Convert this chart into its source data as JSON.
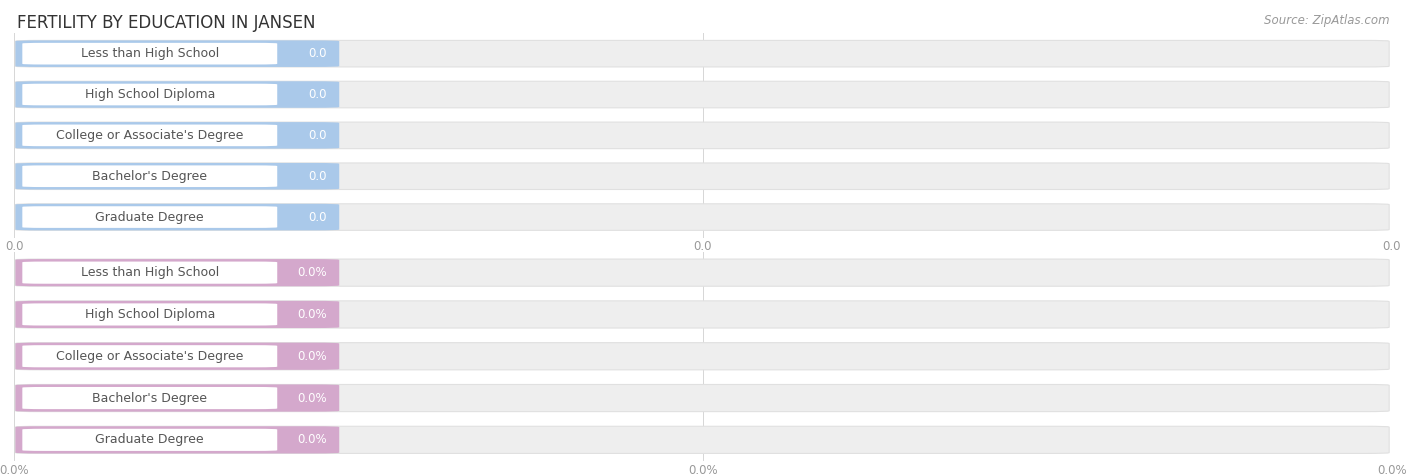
{
  "title": "FERTILITY BY EDUCATION IN JANSEN",
  "source": "Source: ZipAtlas.com",
  "categories": [
    "Less than High School",
    "High School Diploma",
    "College or Associate's Degree",
    "Bachelor's Degree",
    "Graduate Degree"
  ],
  "values_top": [
    0.0,
    0.0,
    0.0,
    0.0,
    0.0
  ],
  "values_bottom": [
    0.0,
    0.0,
    0.0,
    0.0,
    0.0
  ],
  "bar_color_top": "#aac9ea",
  "bar_color_bottom": "#d4a8cc",
  "bg_color": "#ffffff",
  "bar_bg_color": "#eeeeee",
  "title_color": "#333333",
  "source_color": "#999999",
  "label_color": "#555555",
  "value_color_top": "#ffffff",
  "value_color_bottom": "#ffffff",
  "tick_color": "#999999",
  "xtick_labels_top": [
    "0.0",
    "0.0",
    "0.0"
  ],
  "xtick_labels_bottom": [
    "0.0%",
    "0.0%",
    "0.0%"
  ],
  "title_fontsize": 12,
  "label_fontsize": 9,
  "value_fontsize": 8.5,
  "tick_fontsize": 8.5,
  "source_fontsize": 8.5
}
